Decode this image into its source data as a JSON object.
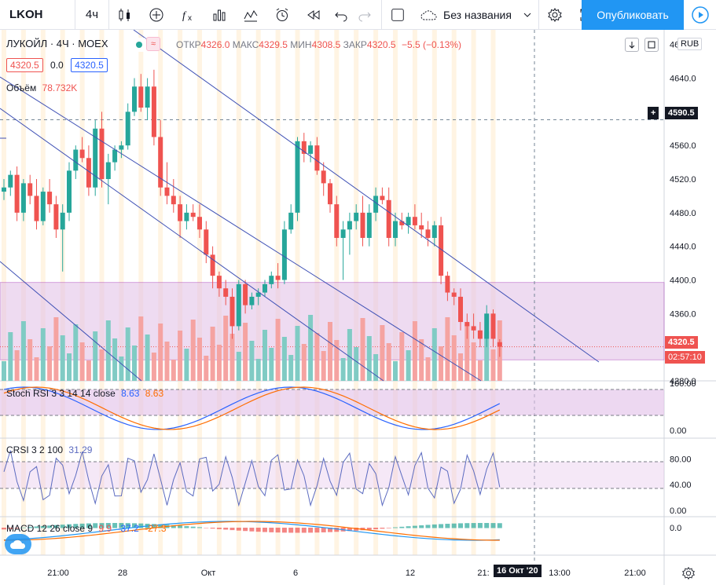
{
  "toolbar": {
    "symbol": "LKOH",
    "interval": "4ч",
    "layout_name": "Без названия",
    "publish_label": "Опубликовать"
  },
  "legend": {
    "title": "ЛУКОЙЛ · 4Ч · MOEX",
    "open_label": "ОТКР",
    "open": "4326.0",
    "high_label": "МАКС",
    "high": "4329.5",
    "low_label": "МИН",
    "low": "4308.5",
    "close_label": "ЗАКР",
    "close": "4320.5",
    "change": "−5.5 (−0.13%)",
    "bid": "4320.5",
    "spread": "0.0",
    "ask": "4320.5",
    "volume_label": "Объём",
    "volume_value": "78.732K"
  },
  "price_axis": {
    "currency": "RUB",
    "ticks": [
      "4680.0",
      "4640.0",
      "4600.0",
      "4560.0",
      "4520.0",
      "4480.0",
      "4440.0",
      "4400.0",
      "4360.0",
      "4280.0"
    ],
    "crosshair_price": "4590.5",
    "last_price": "4320.5",
    "countdown": "02:57:10"
  },
  "stoch_rsi": {
    "label": "Stoch RSI 3 3 14 14 close",
    "k": "8.63",
    "d": "8.63",
    "ticks": [
      "100.00",
      "0.00"
    ]
  },
  "crsi": {
    "label": "CRSI 3 2 100",
    "value": "31.29",
    "ticks": [
      "80.00",
      "40.00",
      "0.00"
    ]
  },
  "macd": {
    "label": "MACD 12 26 close 9",
    "hist": "9.9",
    "macd": "-37.2",
    "signal": "-27.3",
    "ticks": [
      "0.0"
    ]
  },
  "time_axis": {
    "ticks": [
      "21:00",
      "28",
      "Окт",
      "6",
      "12",
      "21:",
      "13:00",
      "21:00"
    ],
    "crosshair_time": "16 Окт '20"
  },
  "colors": {
    "up": "#26a69a",
    "down": "#ef5350",
    "accent": "#2196f3",
    "zone": "#e1bee7",
    "channel": "#3f51b5"
  },
  "chart_data": {
    "type": "candlestick",
    "ylim": [
      4280,
      4690
    ],
    "candles": [
      [
        4505,
        4520,
        4495,
        4510
      ],
      [
        4510,
        4530,
        4500,
        4525
      ],
      [
        4525,
        4535,
        4470,
        4480
      ],
      [
        4480,
        4520,
        4470,
        4515
      ],
      [
        4515,
        4525,
        4490,
        4500
      ],
      [
        4500,
        4520,
        4460,
        4470
      ],
      [
        4470,
        4510,
        4465,
        4505
      ],
      [
        4505,
        4520,
        4480,
        4490
      ],
      [
        4490,
        4500,
        4450,
        4460
      ],
      [
        4460,
        4490,
        4410,
        4480
      ],
      [
        4480,
        4540,
        4470,
        4530
      ],
      [
        4530,
        4560,
        4520,
        4555
      ],
      [
        4555,
        4570,
        4540,
        4545
      ],
      [
        4545,
        4560,
        4500,
        4510
      ],
      [
        4510,
        4590,
        4500,
        4580
      ],
      [
        4580,
        4600,
        4510,
        4520
      ],
      [
        4520,
        4550,
        4490,
        4540
      ],
      [
        4540,
        4560,
        4530,
        4555
      ],
      [
        4555,
        4565,
        4545,
        4560
      ],
      [
        4560,
        4610,
        4555,
        4600
      ],
      [
        4600,
        4640,
        4595,
        4630
      ],
      [
        4630,
        4645,
        4600,
        4605
      ],
      [
        4605,
        4640,
        4590,
        4630
      ],
      [
        4630,
        4650,
        4560,
        4570
      ],
      [
        4570,
        4590,
        4500,
        4510
      ],
      [
        4510,
        4540,
        4490,
        4500
      ],
      [
        4500,
        4520,
        4480,
        4490
      ],
      [
        4490,
        4500,
        4450,
        4470
      ],
      [
        4470,
        4490,
        4460,
        4480
      ],
      [
        4480,
        4490,
        4470,
        4475
      ],
      [
        4475,
        4490,
        4450,
        4460
      ],
      [
        4460,
        4470,
        4420,
        4430
      ],
      [
        4430,
        4440,
        4390,
        4405
      ],
      [
        4405,
        4410,
        4380,
        4390
      ],
      [
        4390,
        4400,
        4370,
        4380
      ],
      [
        4380,
        4390,
        4330,
        4345
      ],
      [
        4345,
        4400,
        4340,
        4395
      ],
      [
        4395,
        4400,
        4360,
        4370
      ],
      [
        4370,
        4385,
        4365,
        4380
      ],
      [
        4380,
        4390,
        4370,
        4385
      ],
      [
        4385,
        4400,
        4380,
        4395
      ],
      [
        4395,
        4410,
        4390,
        4405
      ],
      [
        4405,
        4420,
        4390,
        4400
      ],
      [
        4400,
        4470,
        4395,
        4460
      ],
      [
        4460,
        4490,
        4455,
        4480
      ],
      [
        4480,
        4570,
        4470,
        4565
      ],
      [
        4565,
        4575,
        4540,
        4550
      ],
      [
        4550,
        4565,
        4540,
        4560
      ],
      [
        4560,
        4570,
        4525,
        4530
      ],
      [
        4530,
        4540,
        4500,
        4515
      ],
      [
        4515,
        4520,
        4480,
        4490
      ],
      [
        4490,
        4500,
        4440,
        4450
      ],
      [
        4450,
        4470,
        4400,
        4460
      ],
      [
        4460,
        4480,
        4430,
        4470
      ],
      [
        4470,
        4490,
        4460,
        4480
      ],
      [
        4480,
        4500,
        4440,
        4450
      ],
      [
        4450,
        4490,
        4440,
        4480
      ],
      [
        4480,
        4510,
        4470,
        4500
      ],
      [
        4500,
        4510,
        4490,
        4495
      ],
      [
        4495,
        4510,
        4440,
        4450
      ],
      [
        4450,
        4480,
        4440,
        4470
      ],
      [
        4470,
        4480,
        4460,
        4465
      ],
      [
        4465,
        4480,
        4455,
        4475
      ],
      [
        4475,
        4490,
        4460,
        4465
      ],
      [
        4465,
        4480,
        4450,
        4460
      ],
      [
        4460,
        4470,
        4440,
        4450
      ],
      [
        4450,
        4470,
        4440,
        4465
      ],
      [
        4465,
        4475,
        4395,
        4405
      ],
      [
        4405,
        4410,
        4375,
        4385
      ],
      [
        4385,
        4390,
        4370,
        4380
      ],
      [
        4380,
        4390,
        4340,
        4350
      ],
      [
        4350,
        4360,
        4330,
        4345
      ],
      [
        4345,
        4360,
        4330,
        4340
      ],
      [
        4340,
        4350,
        4320,
        4330
      ],
      [
        4330,
        4370,
        4320,
        4360
      ],
      [
        4360,
        4365,
        4320,
        4330
      ],
      [
        4326,
        4329.5,
        4308.5,
        4320.5
      ]
    ]
  }
}
